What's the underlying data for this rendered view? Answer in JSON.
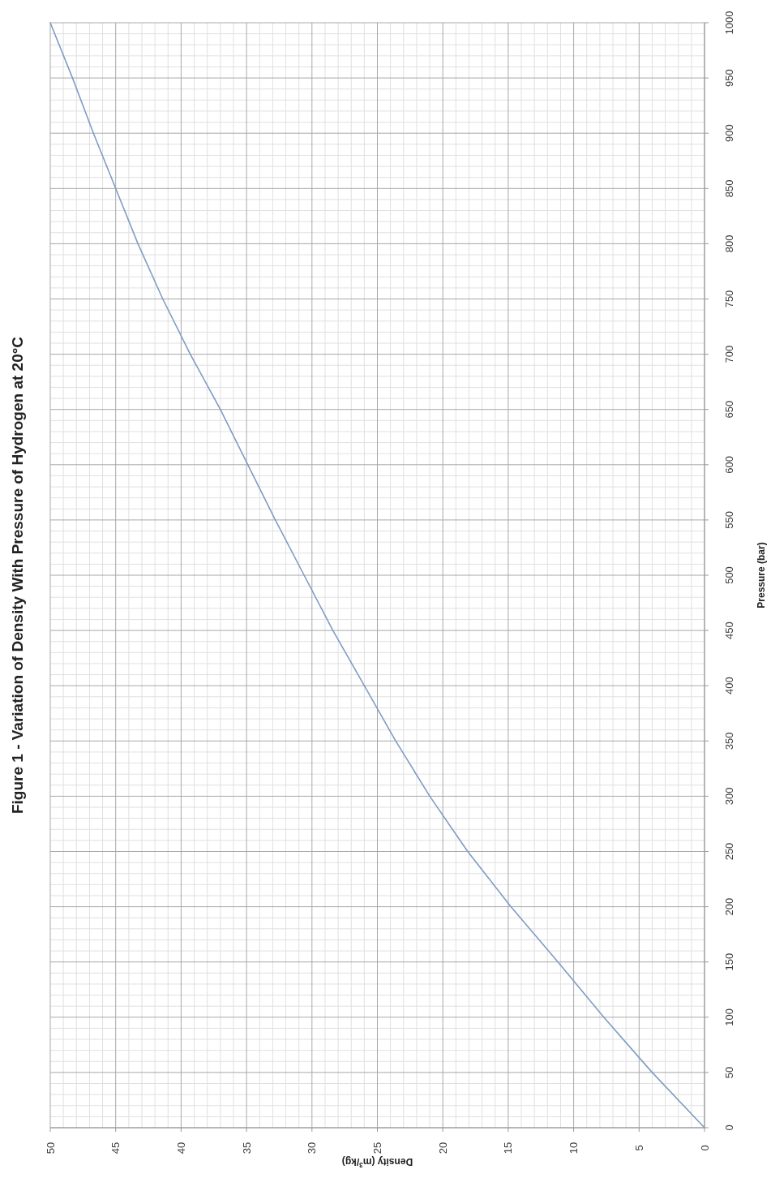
{
  "chart_data": {
    "type": "line",
    "title": "Figure 1 - Variation of Density With Pressure of Hydrogen at 20°C",
    "xlabel": "Density (m$^{3}$/kg)",
    "ylabel": "Pressure (bar)",
    "x": [
      0,
      4.0,
      7.7,
      11.2,
      14.8,
      18.1,
      21.0,
      23.6,
      26.0,
      28.4,
      30.6,
      32.8,
      34.9,
      37.0,
      39.3,
      41.4,
      43.3,
      45.0,
      46.7,
      48.3,
      50
    ],
    "series": [
      {
        "color": "#7f9cc4",
        "values": [
          0,
          50,
          100,
          150,
          200,
          250,
          300,
          350,
          400,
          450,
          500,
          550,
          600,
          650,
          700,
          750,
          800,
          850,
          900,
          950,
          1000
        ]
      }
    ],
    "xlim": [
      50,
      0
    ],
    "xticks": [
      50,
      45,
      40,
      35,
      30,
      25,
      20,
      15,
      10,
      5,
      0
    ],
    "ylim": [
      0,
      1000
    ],
    "yticks": [
      0,
      50,
      100,
      150,
      200,
      250,
      300,
      350,
      400,
      450,
      500,
      550,
      600,
      650,
      700,
      750,
      800,
      850,
      900,
      950,
      1000
    ],
    "grid": true,
    "marker": "none",
    "line_style": "solid"
  }
}
